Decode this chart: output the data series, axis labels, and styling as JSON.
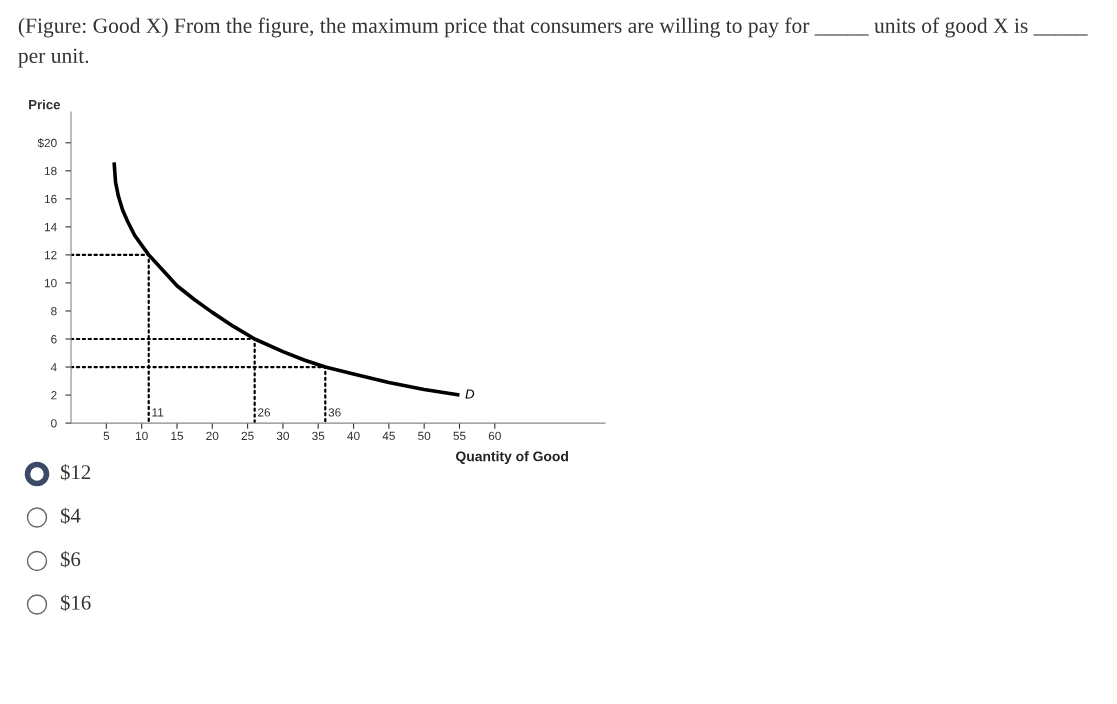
{
  "chart_data": {
    "type": "line",
    "title": "(Figure: Good X) From the figure, the maximum price that consumers are willing to pay for _____ units of good X is _____ per unit.",
    "xlabel": "Quantity of Good",
    "ylabel": "Price",
    "xlim": [
      0,
      75.6
    ],
    "ylim": [
      0,
      22.2
    ],
    "xticks": [
      5,
      10,
      15,
      20,
      25,
      30,
      35,
      40,
      45,
      50,
      55,
      60
    ],
    "yticks": [
      {
        "value": 0,
        "label": "0"
      },
      2,
      4,
      6,
      8,
      10,
      12,
      14,
      16,
      18,
      {
        "value": 20,
        "label": "$20"
      }
    ],
    "grid": false,
    "legend": false,
    "marker": "none",
    "series": [
      {
        "name": null,
        "color": "#000000",
        "line_style": "solid",
        "x": [
          6.1,
          6.3,
          6.7,
          7.3,
          8,
          9,
          10,
          11,
          13,
          15,
          17.5,
          20,
          23,
          26,
          30,
          33,
          36,
          40,
          45,
          50,
          55
        ],
        "values": [
          18.6,
          17.2,
          16.2,
          15.2,
          14.4,
          13.4,
          12.7,
          12,
          10.9,
          9.8,
          8.8,
          7.9,
          6.9,
          6,
          5.1,
          4.5,
          4,
          3.5,
          2.9,
          2.4,
          2.0
        ]
      },
      {
        "name": null,
        "color": "#000000",
        "line_style": "dotted",
        "x": [
          0,
          11,
          11
        ],
        "values": [
          12,
          12,
          0
        ]
      },
      {
        "name": null,
        "color": "#000000",
        "line_style": "dotted",
        "x": [
          0,
          26,
          26
        ],
        "values": [
          6,
          6,
          0
        ]
      },
      {
        "name": null,
        "color": "#000000",
        "line_style": "dotted",
        "x": [
          0,
          36,
          36
        ],
        "values": [
          4,
          4,
          0
        ]
      }
    ],
    "annotations": [
      {
        "text": "11",
        "x": 11,
        "y": 0
      },
      {
        "text": "26",
        "x": 26,
        "y": 0
      },
      {
        "text": "36",
        "x": 36,
        "y": 0
      },
      {
        "text": "D",
        "x": 55,
        "y": 2.0
      },
      "$12",
      "$4",
      "$6",
      "$16"
    ]
  }
}
